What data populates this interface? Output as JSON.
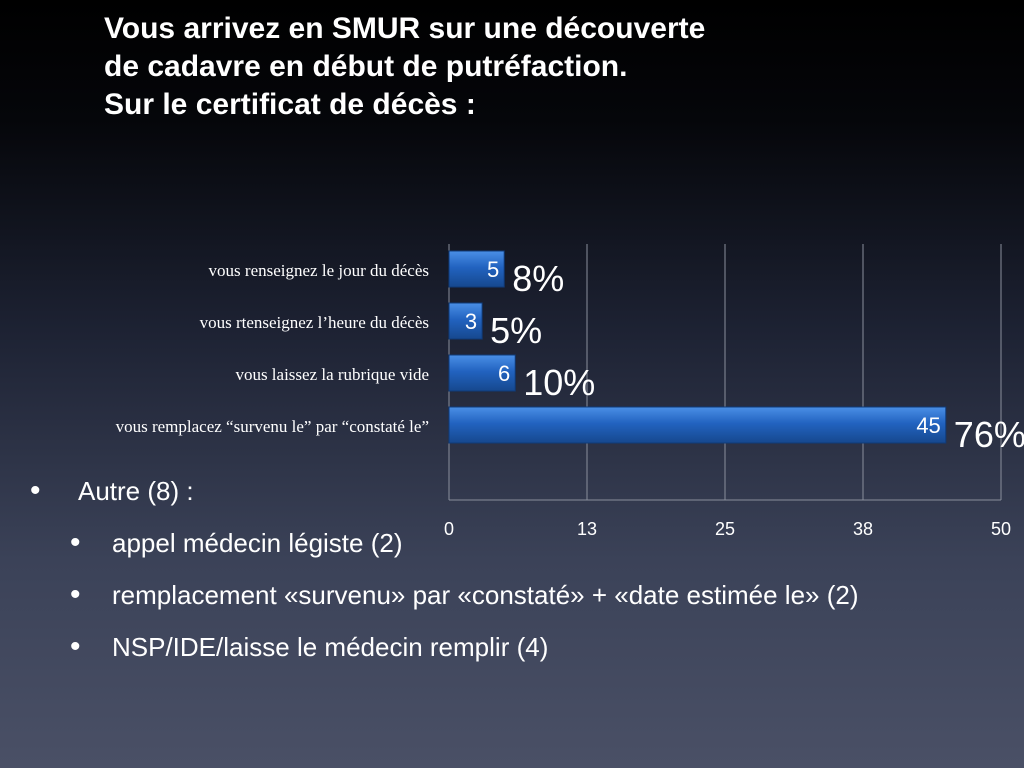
{
  "slide": {
    "title_lines": [
      "Vous arrivez en SMUR sur une découverte",
      "de cadavre en début de putréfaction.",
      "Sur le certificat de décès :"
    ]
  },
  "chart_data": {
    "type": "bar",
    "orientation": "horizontal",
    "categories": [
      "vous renseignez le jour du décès",
      "vous rtenseignez l’heure du décès",
      "vous laissez la rubrique vide",
      "vous remplacez “survenu le” par “constaté le”"
    ],
    "values": [
      5,
      3,
      6,
      45
    ],
    "value_labels": [
      "5",
      "3",
      "6",
      "45"
    ],
    "percent_labels": [
      "8%",
      "5%",
      "10%",
      "76%"
    ],
    "xlim": [
      0,
      50
    ],
    "xticks": [
      "0",
      "13",
      "25",
      "38",
      "50"
    ],
    "xtick_values": [
      0,
      12.5,
      25,
      37.5,
      50
    ],
    "grid": true,
    "bar_color": "#1f5fb5",
    "bar_highlight": "#3f86e0"
  },
  "bullets": {
    "main": "Autre (8) :",
    "sub": [
      "appel médecin légiste (2)",
      "remplacement «survenu» par «constaté» + «date estimée le» (2)",
      "NSP/IDE/laisse le médecin remplir (4)"
    ],
    "marker": "•"
  }
}
